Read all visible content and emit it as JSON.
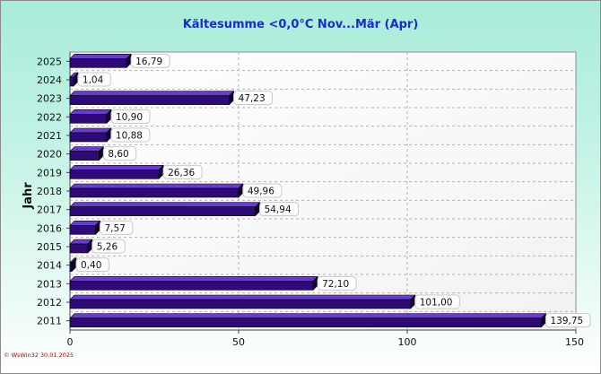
{
  "chart_data": {
    "type": "bar",
    "orientation": "horizontal",
    "title": "Kältesumme  <0,0°C  Nov...Mär (Apr)",
    "ylabel": "Jahr",
    "xlabel": "",
    "categories": [
      "2025",
      "2024",
      "2023",
      "2022",
      "2021",
      "2020",
      "2019",
      "2018",
      "2017",
      "2016",
      "2015",
      "2014",
      "2013",
      "2012",
      "2011"
    ],
    "values": [
      16.79,
      1.04,
      47.23,
      10.9,
      10.88,
      8.6,
      26.36,
      49.96,
      54.94,
      7.57,
      5.26,
      0.4,
      72.1,
      101.0,
      139.75
    ],
    "value_labels": [
      "16,79",
      "1,04",
      "47,23",
      "10,90",
      "10,88",
      "8,60",
      "26,36",
      "49,96",
      "54,94",
      "7,57",
      "5,26",
      "0,40",
      "72,10",
      "101,00",
      "139,75"
    ],
    "xlim": [
      0,
      150
    ],
    "xticks": [
      0,
      50,
      100,
      150
    ],
    "xtick_labels": [
      "0",
      "50",
      "100",
      "150"
    ],
    "grid": true,
    "colors": {
      "bar": "#2e0a78",
      "bar_top": "#6a3bd0",
      "bar_side": "#120030",
      "title": "#1a2bd0",
      "footer": "#c00000"
    }
  },
  "footer": "© WsWin32  30.01.2025"
}
